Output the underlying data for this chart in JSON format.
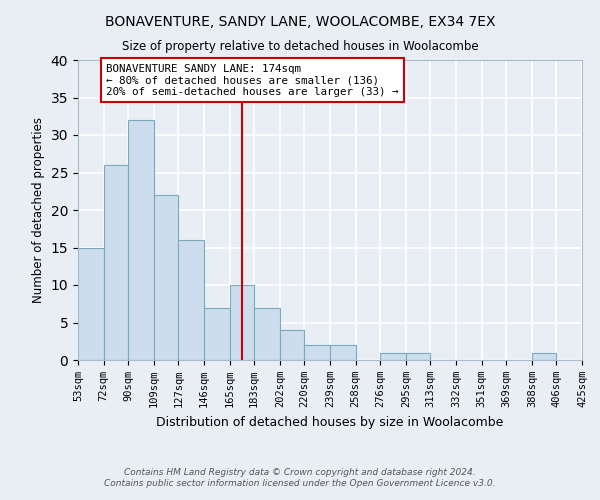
{
  "title": "BONAVENTURE, SANDY LANE, WOOLACOMBE, EX34 7EX",
  "subtitle": "Size of property relative to detached houses in Woolacombe",
  "xlabel": "Distribution of detached houses by size in Woolacombe",
  "ylabel": "Number of detached properties",
  "footer1": "Contains HM Land Registry data © Crown copyright and database right 2024.",
  "footer2": "Contains public sector information licensed under the Open Government Licence v3.0.",
  "bins": [
    53,
    72,
    90,
    109,
    127,
    146,
    165,
    183,
    202,
    220,
    239,
    258,
    276,
    295,
    313,
    332,
    351,
    369,
    388,
    406,
    425
  ],
  "counts": [
    15,
    26,
    32,
    22,
    16,
    7,
    10,
    7,
    4,
    2,
    2,
    0,
    1,
    1,
    0,
    0,
    0,
    0,
    1,
    0
  ],
  "bar_color": "#ccdded",
  "bar_edge_color": "#7aaabb",
  "vline_x": 174,
  "vline_color": "#cc0000",
  "annotation_title": "BONAVENTURE SANDY LANE: 174sqm",
  "annotation_line1": "← 80% of detached houses are smaller (136)",
  "annotation_line2": "20% of semi-detached houses are larger (33) →",
  "annotation_box_color": "#cc0000",
  "annotation_bg": "#ffffff",
  "ylim": [
    0,
    40
  ],
  "background_color": "#e8eef4",
  "plot_bg_color": "#e8eef4",
  "grid_color": "#ffffff"
}
